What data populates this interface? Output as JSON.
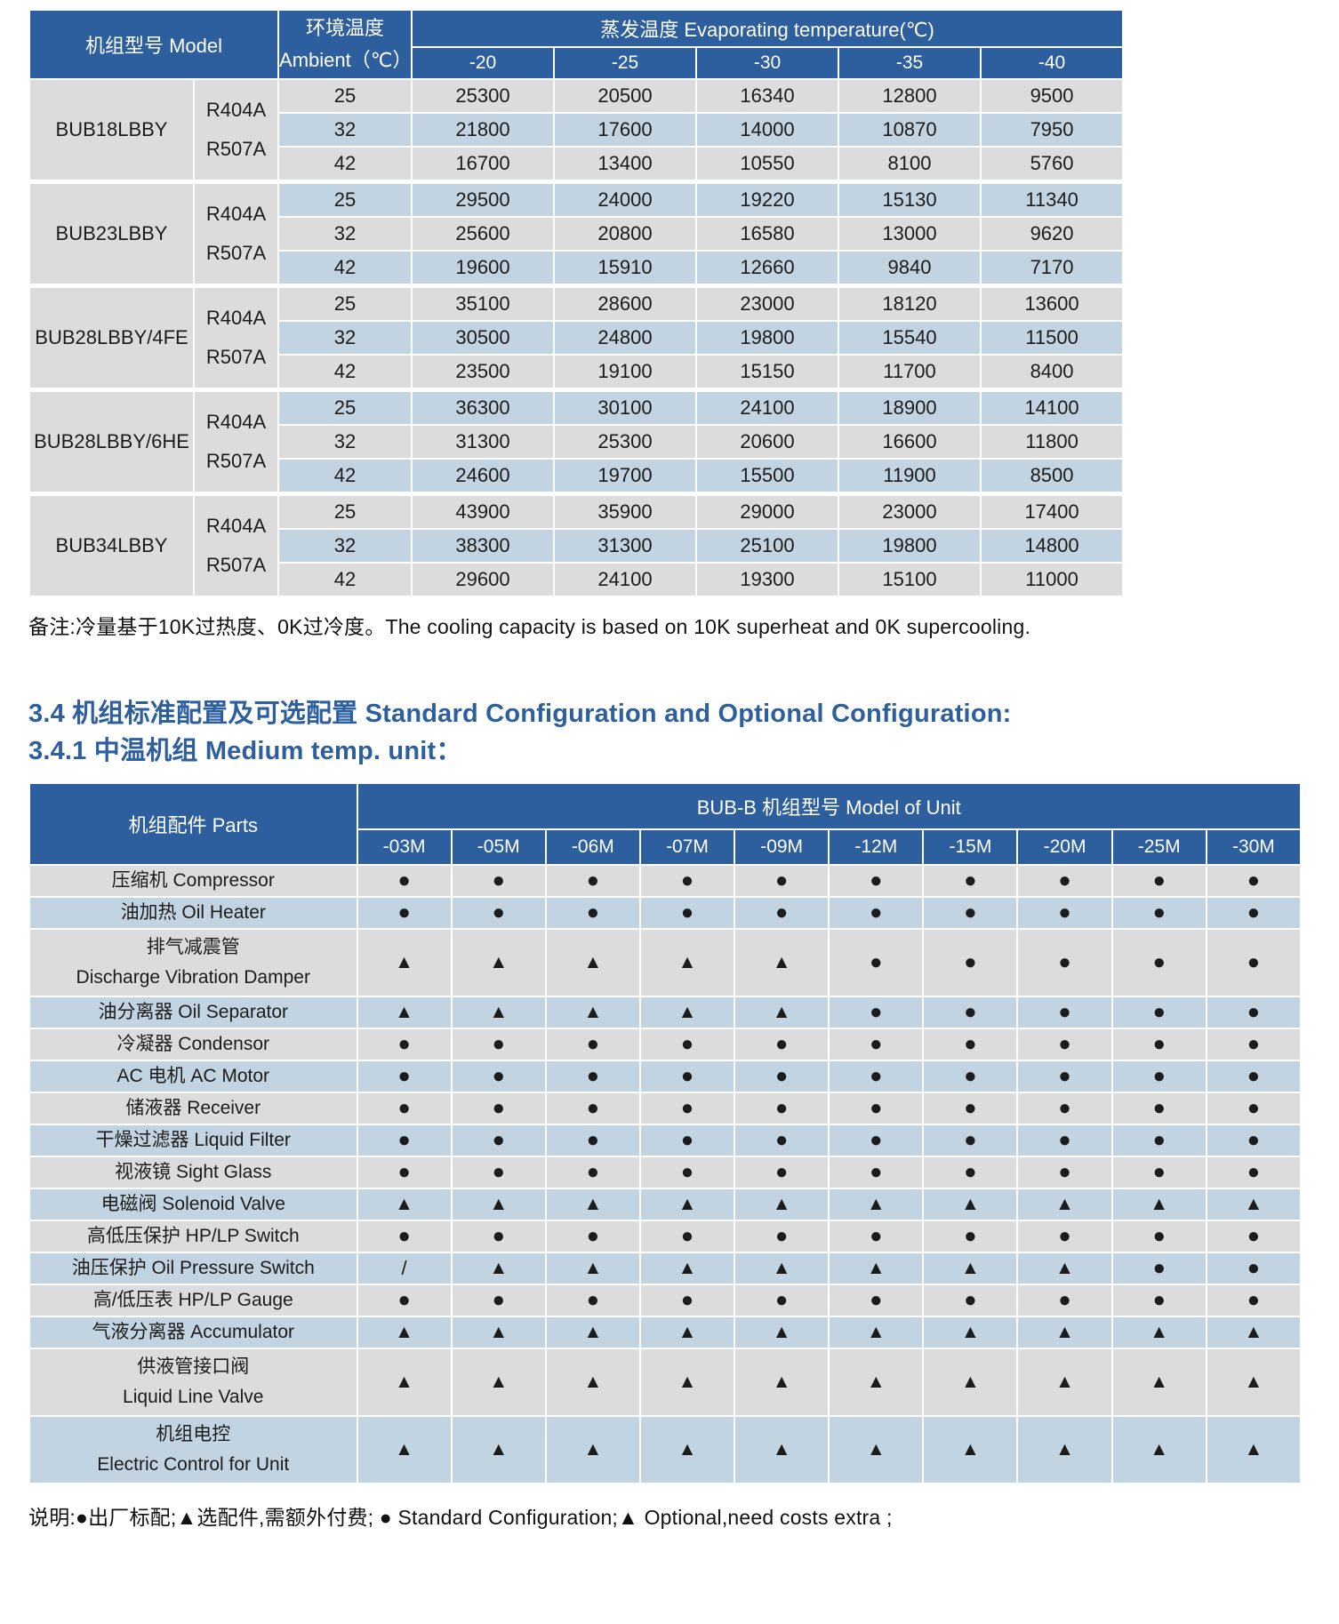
{
  "capacity_table": {
    "model_header": "机组型号 Model",
    "ambient_header_lines": [
      "环境温度",
      "Ambient（℃）"
    ],
    "evap_group_header": "蒸发温度 Evaporating temperature(℃)",
    "evap_columns": [
      "-20",
      "-25",
      "-30",
      "-35",
      "-40"
    ],
    "groups": [
      {
        "model": "BUB18LBBY",
        "refrigerants": [
          "R404A",
          "R507A"
        ],
        "rows": [
          {
            "ambient": "25",
            "values": [
              "25300",
              "20500",
              "16340",
              "12800",
              "9500"
            ]
          },
          {
            "ambient": "32",
            "values": [
              "21800",
              "17600",
              "14000",
              "10870",
              "7950"
            ]
          },
          {
            "ambient": "42",
            "values": [
              "16700",
              "13400",
              "10550",
              "8100",
              "5760"
            ]
          }
        ]
      },
      {
        "model": "BUB23LBBY",
        "refrigerants": [
          "R404A",
          "R507A"
        ],
        "rows": [
          {
            "ambient": "25",
            "values": [
              "29500",
              "24000",
              "19220",
              "15130",
              "11340"
            ]
          },
          {
            "ambient": "32",
            "values": [
              "25600",
              "20800",
              "16580",
              "13000",
              "9620"
            ]
          },
          {
            "ambient": "42",
            "values": [
              "19600",
              "15910",
              "12660",
              "9840",
              "7170"
            ]
          }
        ]
      },
      {
        "model": "BUB28LBBY/4FE",
        "refrigerants": [
          "R404A",
          "R507A"
        ],
        "rows": [
          {
            "ambient": "25",
            "values": [
              "35100",
              "28600",
              "23000",
              "18120",
              "13600"
            ]
          },
          {
            "ambient": "32",
            "values": [
              "30500",
              "24800",
              "19800",
              "15540",
              "11500"
            ]
          },
          {
            "ambient": "42",
            "values": [
              "23500",
              "19100",
              "15150",
              "11700",
              "8400"
            ]
          }
        ]
      },
      {
        "model": "BUB28LBBY/6HE",
        "refrigerants": [
          "R404A",
          "R507A"
        ],
        "rows": [
          {
            "ambient": "25",
            "values": [
              "36300",
              "30100",
              "24100",
              "18900",
              "14100"
            ]
          },
          {
            "ambient": "32",
            "values": [
              "31300",
              "25300",
              "20600",
              "16600",
              "11800"
            ]
          },
          {
            "ambient": "42",
            "values": [
              "24600",
              "19700",
              "15500",
              "11900",
              "8500"
            ]
          }
        ]
      },
      {
        "model": "BUB34LBBY",
        "refrigerants": [
          "R404A",
          "R507A"
        ],
        "rows": [
          {
            "ambient": "25",
            "values": [
              "43900",
              "35900",
              "29000",
              "23000",
              "17400"
            ]
          },
          {
            "ambient": "32",
            "values": [
              "38300",
              "31300",
              "25100",
              "19800",
              "14800"
            ]
          },
          {
            "ambient": "42",
            "values": [
              "29600",
              "24100",
              "19300",
              "15100",
              "11000"
            ]
          }
        ]
      }
    ],
    "note": "备注:冷量基于10K过热度、0K过冷度。The cooling capacity is based on 10K superheat and 0K supercooling."
  },
  "headings": {
    "section": "3.4 机组标准配置及可选配置 Standard Configuration and Optional Configuration:",
    "subsection": "3.4.1 中温机组 Medium temp. unit："
  },
  "config_table": {
    "parts_header": "机组配件 Parts",
    "group_header": "BUB-B 机组型号 Model of Unit",
    "model_columns": [
      "-03M",
      "-05M",
      "-06M",
      "-07M",
      "-09M",
      "-12M",
      "-15M",
      "-20M",
      "-25M",
      "-30M"
    ],
    "legend": {
      "standard": "●",
      "optional": "▲",
      "not_applicable": "/"
    },
    "rows": [
      {
        "label_lines": [
          "压缩机 Compressor"
        ],
        "symbols": [
          "●",
          "●",
          "●",
          "●",
          "●",
          "●",
          "●",
          "●",
          "●",
          "●"
        ]
      },
      {
        "label_lines": [
          "油加热 Oil Heater"
        ],
        "symbols": [
          "●",
          "●",
          "●",
          "●",
          "●",
          "●",
          "●",
          "●",
          "●",
          "●"
        ]
      },
      {
        "label_lines": [
          "排气减震管",
          "Discharge Vibration Damper"
        ],
        "symbols": [
          "▲",
          "▲",
          "▲",
          "▲",
          "▲",
          "●",
          "●",
          "●",
          "●",
          "●"
        ]
      },
      {
        "label_lines": [
          "油分离器 Oil Separator"
        ],
        "symbols": [
          "▲",
          "▲",
          "▲",
          "▲",
          "▲",
          "●",
          "●",
          "●",
          "●",
          "●"
        ]
      },
      {
        "label_lines": [
          "冷凝器 Condensor"
        ],
        "symbols": [
          "●",
          "●",
          "●",
          "●",
          "●",
          "●",
          "●",
          "●",
          "●",
          "●"
        ]
      },
      {
        "label_lines": [
          "AC 电机  AC Motor"
        ],
        "symbols": [
          "●",
          "●",
          "●",
          "●",
          "●",
          "●",
          "●",
          "●",
          "●",
          "●"
        ]
      },
      {
        "label_lines": [
          "储液器  Receiver"
        ],
        "symbols": [
          "●",
          "●",
          "●",
          "●",
          "●",
          "●",
          "●",
          "●",
          "●",
          "●"
        ]
      },
      {
        "label_lines": [
          "干燥过滤器  Liquid Filter"
        ],
        "symbols": [
          "●",
          "●",
          "●",
          "●",
          "●",
          "●",
          "●",
          "●",
          "●",
          "●"
        ]
      },
      {
        "label_lines": [
          "视液镜 Sight Glass"
        ],
        "symbols": [
          "●",
          "●",
          "●",
          "●",
          "●",
          "●",
          "●",
          "●",
          "●",
          "●"
        ]
      },
      {
        "label_lines": [
          "电磁阀 Solenoid Valve"
        ],
        "symbols": [
          "▲",
          "▲",
          "▲",
          "▲",
          "▲",
          "▲",
          "▲",
          "▲",
          "▲",
          "▲"
        ]
      },
      {
        "label_lines": [
          "高低压保护 HP/LP Switch"
        ],
        "symbols": [
          "●",
          "●",
          "●",
          "●",
          "●",
          "●",
          "●",
          "●",
          "●",
          "●"
        ]
      },
      {
        "label_lines": [
          "油压保护 Oil Pressure Switch"
        ],
        "symbols": [
          "/",
          "▲",
          "▲",
          "▲",
          "▲",
          "▲",
          "▲",
          "▲",
          "●",
          "●"
        ]
      },
      {
        "label_lines": [
          "高/低压表 HP/LP Gauge"
        ],
        "symbols": [
          "●",
          "●",
          "●",
          "●",
          "●",
          "●",
          "●",
          "●",
          "●",
          "●"
        ]
      },
      {
        "label_lines": [
          "气液分离器 Accumulator"
        ],
        "symbols": [
          "▲",
          "▲",
          "▲",
          "▲",
          "▲",
          "▲",
          "▲",
          "▲",
          "▲",
          "▲"
        ]
      },
      {
        "label_lines": [
          "供液管接口阀",
          "Liquid Line Valve"
        ],
        "symbols": [
          "▲",
          "▲",
          "▲",
          "▲",
          "▲",
          "▲",
          "▲",
          "▲",
          "▲",
          "▲"
        ]
      },
      {
        "label_lines": [
          "机组电控",
          "Electric Control for Unit"
        ],
        "symbols": [
          "▲",
          "▲",
          "▲",
          "▲",
          "▲",
          "▲",
          "▲",
          "▲",
          "▲",
          "▲"
        ]
      }
    ],
    "note": "说明:●出厂标配;▲选配件,需额外付费; ● Standard Configuration;▲ Optional,need costs extra ;"
  },
  "colors": {
    "header_blue": "#2d5e9e",
    "row_grey": "#dcdcdc",
    "row_blue": "#c2d3e1",
    "heading_blue": "#2d5f9e"
  }
}
